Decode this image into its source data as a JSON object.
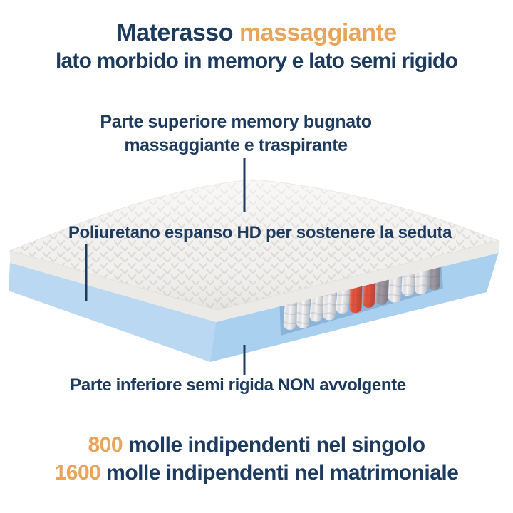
{
  "title": {
    "part1": "Materasso",
    "part2": "massaggiante"
  },
  "subtitle": "lato morbido in memory e lato semi rigido",
  "annotations": {
    "top_line1": "Parte superiore memory bugnato",
    "top_line2": "massaggiante e traspirante",
    "middle": "Poliuretano espanso HD per sostenere la seduta",
    "bottom": "Parte inferiore semi rigida NON avvolgente"
  },
  "stats": [
    {
      "value": "800",
      "text": " molle indipendenti nel singolo"
    },
    {
      "value": "1600",
      "text": " molle indipendenti nel matrimoniale"
    }
  ],
  "colors": {
    "navy": "#1d3b5f",
    "orange": "#e9a45c"
  },
  "illustration": {
    "springs": [
      "white",
      "white",
      "white",
      "white",
      "white",
      "red",
      "red",
      "gray",
      "white",
      "white",
      "white",
      "gray"
    ],
    "spring_colors": {
      "white": "#f6f6f8",
      "red": "#e9513b",
      "gray": "#a09aa4"
    },
    "foam_color": "#f1f0ee",
    "foam_texture_color": "#dcdbd7",
    "base_left_color": "#bad8f2",
    "base_right_color": "#a9d0ee",
    "cutaway_color": "#8cb4d9"
  }
}
